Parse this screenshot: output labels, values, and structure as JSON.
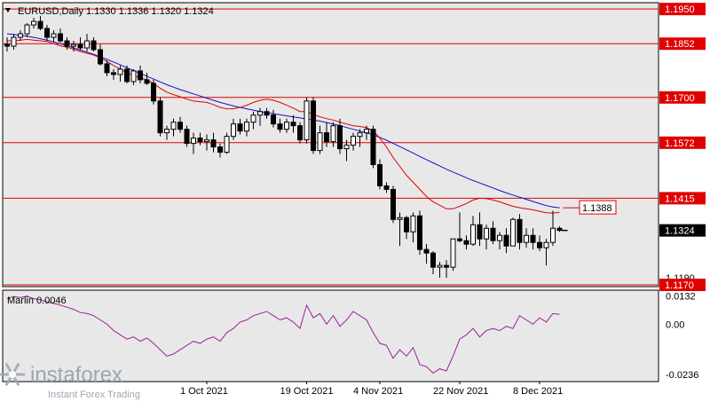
{
  "chart_data": {
    "type": "candlestick",
    "symbol": "EURUSD,Daily",
    "ohlc_header": "1.1330 1.1336 1.1320 1.1324",
    "price_axis": {
      "min": 1.1165,
      "max": 1.1968,
      "ticks": [
        "1.1950",
        "1.1855",
        "1.1415",
        "1.1190"
      ]
    },
    "current_price": {
      "value": 1.1324,
      "label": "1.1324"
    },
    "target_level": {
      "value": 1.1388,
      "label": "1.1388",
      "color": "#e00000"
    },
    "levels": [
      {
        "value": 1.195,
        "label": "1.1950"
      },
      {
        "value": 1.1852,
        "label": "1.1852"
      },
      {
        "value": 1.17,
        "label": "1.1700"
      },
      {
        "value": 1.1572,
        "label": "1.1572"
      },
      {
        "value": 1.1415,
        "label": "1.1415"
      },
      {
        "value": 1.117,
        "label": "1.1170"
      }
    ],
    "x_labels": [
      "1 Oct 2021",
      "19 Oct 2021",
      "4 Nov 2021",
      "22 Nov 2021",
      "8 Dec 2021"
    ],
    "candles": [
      [
        1.185,
        1.187,
        1.183,
        1.1845
      ],
      [
        1.1845,
        1.188,
        1.1835,
        1.187
      ],
      [
        1.187,
        1.189,
        1.186,
        1.188
      ],
      [
        1.188,
        1.191,
        1.187,
        1.1905
      ],
      [
        1.1905,
        1.1925,
        1.1895,
        1.1915
      ],
      [
        1.1915,
        1.193,
        1.189,
        1.1895
      ],
      [
        1.1895,
        1.1905,
        1.186,
        1.187
      ],
      [
        1.187,
        1.189,
        1.1855,
        1.188
      ],
      [
        1.188,
        1.1895,
        1.1855,
        1.186
      ],
      [
        1.186,
        1.187,
        1.1835,
        1.1845
      ],
      [
        1.1845,
        1.186,
        1.183,
        1.185
      ],
      [
        1.185,
        1.187,
        1.1835,
        1.184
      ],
      [
        1.184,
        1.188,
        1.183,
        1.186
      ],
      [
        1.186,
        1.187,
        1.183,
        1.1835
      ],
      [
        1.1835,
        1.185,
        1.179,
        1.1795
      ],
      [
        1.1795,
        1.1805,
        1.176,
        1.177
      ],
      [
        1.177,
        1.178,
        1.175,
        1.1765
      ],
      [
        1.1765,
        1.179,
        1.1745,
        1.178
      ],
      [
        1.178,
        1.179,
        1.174,
        1.1745
      ],
      [
        1.1745,
        1.178,
        1.1735,
        1.1775
      ],
      [
        1.1775,
        1.179,
        1.174,
        1.175
      ],
      [
        1.175,
        1.177,
        1.1735,
        1.174
      ],
      [
        1.174,
        1.175,
        1.168,
        1.169
      ],
      [
        1.169,
        1.17,
        1.159,
        1.16
      ],
      [
        1.16,
        1.162,
        1.158,
        1.161
      ],
      [
        1.161,
        1.164,
        1.159,
        1.163
      ],
      [
        1.163,
        1.1645,
        1.16,
        1.161
      ],
      [
        1.161,
        1.162,
        1.156,
        1.157
      ],
      [
        1.157,
        1.16,
        1.154,
        1.1585
      ],
      [
        1.1585,
        1.16,
        1.1565,
        1.1575
      ],
      [
        1.1575,
        1.1595,
        1.155,
        1.158
      ],
      [
        1.158,
        1.16,
        1.1545,
        1.156
      ],
      [
        1.156,
        1.157,
        1.153,
        1.1545
      ],
      [
        1.1545,
        1.16,
        1.154,
        1.159
      ],
      [
        1.159,
        1.164,
        1.158,
        1.1625
      ],
      [
        1.1625,
        1.164,
        1.1595,
        1.1605
      ],
      [
        1.1605,
        1.164,
        1.159,
        1.163
      ],
      [
        1.163,
        1.166,
        1.161,
        1.165
      ],
      [
        1.165,
        1.167,
        1.162,
        1.166
      ],
      [
        1.166,
        1.167,
        1.164,
        1.165
      ],
      [
        1.165,
        1.1665,
        1.1615,
        1.1625
      ],
      [
        1.1625,
        1.164,
        1.16,
        1.161
      ],
      [
        1.161,
        1.164,
        1.16,
        1.163
      ],
      [
        1.163,
        1.165,
        1.16,
        1.162
      ],
      [
        1.162,
        1.163,
        1.157,
        1.158
      ],
      [
        1.158,
        1.17,
        1.157,
        1.169
      ],
      [
        1.169,
        1.17,
        1.154,
        1.155
      ],
      [
        1.155,
        1.162,
        1.154,
        1.16
      ],
      [
        1.16,
        1.163,
        1.156,
        1.1575
      ],
      [
        1.1575,
        1.163,
        1.156,
        1.162
      ],
      [
        1.162,
        1.164,
        1.154,
        1.1555
      ],
      [
        1.1555,
        1.158,
        1.152,
        1.1565
      ],
      [
        1.1565,
        1.16,
        1.155,
        1.159
      ],
      [
        1.159,
        1.161,
        1.156,
        1.16
      ],
      [
        1.16,
        1.162,
        1.158,
        1.161
      ],
      [
        1.161,
        1.162,
        1.15,
        1.151
      ],
      [
        1.151,
        1.1525,
        1.144,
        1.145
      ],
      [
        1.145,
        1.146,
        1.143,
        1.144
      ],
      [
        1.144,
        1.145,
        1.1345,
        1.1355
      ],
      [
        1.1355,
        1.1375,
        1.128,
        1.136
      ],
      [
        1.136,
        1.1365,
        1.13,
        1.132
      ],
      [
        1.132,
        1.1375,
        1.129,
        1.1365
      ],
      [
        1.1365,
        1.138,
        1.1255,
        1.127
      ],
      [
        1.127,
        1.1285,
        1.123,
        1.126
      ],
      [
        1.126,
        1.1265,
        1.12,
        1.122
      ],
      [
        1.122,
        1.1235,
        1.119,
        1.1225
      ],
      [
        1.1225,
        1.124,
        1.119,
        1.122
      ],
      [
        1.122,
        1.13,
        1.121,
        1.13
      ],
      [
        1.13,
        1.1375,
        1.129,
        1.1295
      ],
      [
        1.1295,
        1.131,
        1.127,
        1.1285
      ],
      [
        1.1285,
        1.1365,
        1.128,
        1.134
      ],
      [
        1.134,
        1.1375,
        1.128,
        1.13
      ],
      [
        1.13,
        1.134,
        1.127,
        1.133
      ],
      [
        1.133,
        1.135,
        1.1285,
        1.1295
      ],
      [
        1.1295,
        1.132,
        1.127,
        1.131
      ],
      [
        1.131,
        1.133,
        1.126,
        1.128
      ],
      [
        1.128,
        1.136,
        1.128,
        1.1355
      ],
      [
        1.1355,
        1.137,
        1.127,
        1.129
      ],
      [
        1.129,
        1.133,
        1.1275,
        1.131
      ],
      [
        1.131,
        1.133,
        1.127,
        1.129
      ],
      [
        1.129,
        1.131,
        1.1265,
        1.1275
      ],
      [
        1.1275,
        1.13,
        1.1225,
        1.129
      ],
      [
        1.129,
        1.138,
        1.128,
        1.133
      ],
      [
        1.133,
        1.1336,
        1.132,
        1.1324
      ]
    ],
    "ma_fast": {
      "color": "#e00000",
      "values": [
        1.186,
        1.186,
        1.1862,
        1.1864,
        1.1862,
        1.186,
        1.1858,
        1.1852,
        1.1846,
        1.1842,
        1.1836,
        1.183,
        1.1825,
        1.182,
        1.1812,
        1.1802,
        1.179,
        1.178,
        1.177,
        1.1762,
        1.1755,
        1.175,
        1.174,
        1.1726,
        1.1715,
        1.1708,
        1.1702,
        1.1695,
        1.169,
        1.1688,
        1.1686,
        1.168,
        1.1672,
        1.1668,
        1.1668,
        1.1672,
        1.1678,
        1.1686,
        1.1692,
        1.1695,
        1.1692,
        1.1686,
        1.1678,
        1.167,
        1.166,
        1.166,
        1.1652,
        1.1645,
        1.164,
        1.1636,
        1.163,
        1.1625,
        1.162,
        1.1618,
        1.1615,
        1.1605,
        1.1585,
        1.156,
        1.153,
        1.1505,
        1.148,
        1.146,
        1.144,
        1.142,
        1.1405,
        1.1395,
        1.1385,
        1.1385,
        1.1392,
        1.14,
        1.141,
        1.1415,
        1.1414,
        1.141,
        1.1405,
        1.1398,
        1.1392,
        1.1388,
        1.1385,
        1.1382,
        1.1378,
        1.1374,
        1.1373,
        1.1375
      ]
    },
    "ma_slow": {
      "color": "#1010d0",
      "values": [
        1.188,
        1.1878,
        1.1876,
        1.1873,
        1.187,
        1.1866,
        1.1862,
        1.1857,
        1.1852,
        1.1846,
        1.184,
        1.1834,
        1.1828,
        1.1822,
        1.1815,
        1.1808,
        1.18,
        1.1792,
        1.1784,
        1.1776,
        1.1768,
        1.176,
        1.1752,
        1.1744,
        1.1736,
        1.1729,
        1.1722,
        1.1716,
        1.171,
        1.1704,
        1.1698,
        1.1692,
        1.1686,
        1.1681,
        1.1676,
        1.1672,
        1.1668,
        1.1664,
        1.166,
        1.1657,
        1.1654,
        1.1651,
        1.1648,
        1.1645,
        1.1642,
        1.1639,
        1.1636,
        1.1633,
        1.1629,
        1.1625,
        1.162,
        1.1615,
        1.161,
        1.1605,
        1.16,
        1.1594,
        1.1587,
        1.1579,
        1.157,
        1.1561,
        1.1552,
        1.1543,
        1.1533,
        1.1524,
        1.1515,
        1.1506,
        1.1497,
        1.1489,
        1.1481,
        1.1473,
        1.1465,
        1.1458,
        1.1451,
        1.1444,
        1.1437,
        1.143,
        1.1424,
        1.1418,
        1.1412,
        1.1406,
        1.14,
        1.1394,
        1.139,
        1.1388
      ]
    },
    "oscillator": {
      "label": "Marlin 0.0046",
      "color": "#9b1f9b",
      "range": [
        -0.027,
        0.016
      ],
      "ticks": [
        "0.0132",
        "0.00",
        "-0.0236"
      ],
      "values": [
        0.012,
        0.013,
        0.0125,
        0.0132,
        0.012,
        0.0115,
        0.0105,
        0.0098,
        0.009,
        0.008,
        0.007,
        0.0055,
        0.005,
        0.004,
        0.002,
        0.0,
        -0.003,
        -0.005,
        -0.007,
        -0.006,
        -0.008,
        -0.0065,
        -0.009,
        -0.012,
        -0.015,
        -0.014,
        -0.012,
        -0.01,
        -0.008,
        -0.009,
        -0.007,
        -0.006,
        -0.008,
        -0.004,
        -0.002,
        0.001,
        0.002,
        0.004,
        0.005,
        0.006,
        0.004,
        0.002,
        0.003,
        0.001,
        -0.002,
        0.009,
        0.003,
        0.005,
        0.0,
        0.004,
        -0.001,
        0.002,
        0.006,
        0.004,
        0.002,
        -0.004,
        -0.009,
        -0.01,
        -0.016,
        -0.012,
        -0.015,
        -0.011,
        -0.019,
        -0.02,
        -0.023,
        -0.021,
        -0.022,
        -0.015,
        -0.007,
        -0.005,
        -0.002,
        -0.006,
        -0.003,
        -0.002,
        -0.003,
        -0.001,
        -0.002,
        0.004,
        0.002,
        0.0,
        0.003,
        0.001,
        0.005,
        0.0046
      ]
    }
  },
  "watermark": {
    "brand": "instaforex",
    "tagline": "Instant Forex Trading"
  },
  "colors": {
    "level": "#e00000",
    "current_bg": "#000000",
    "bg": "#ffffff",
    "plot_bg": "#e8e8e8"
  }
}
